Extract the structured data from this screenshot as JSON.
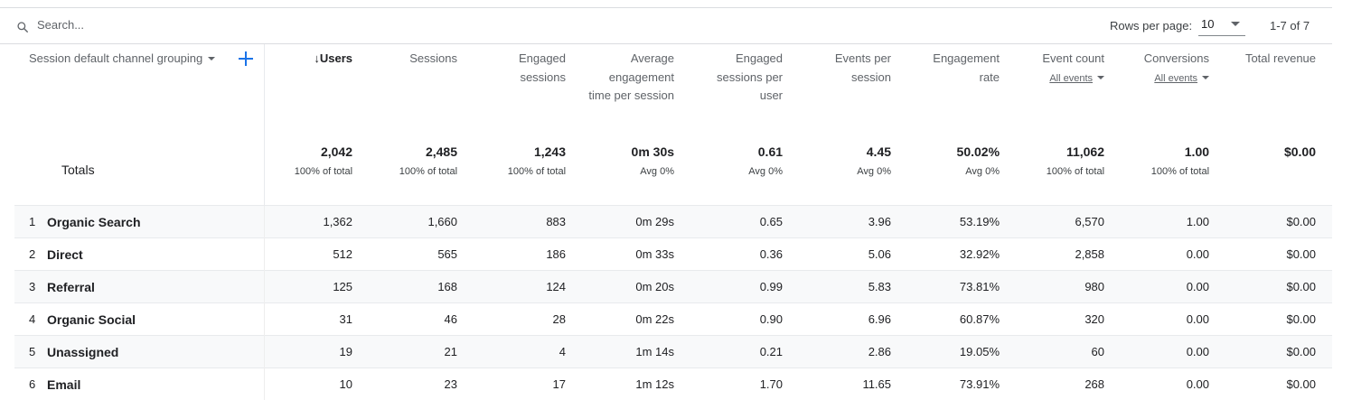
{
  "search": {
    "placeholder": "Search..."
  },
  "pagination": {
    "rows_label": "Rows per page:",
    "rows_value": "10",
    "range": "1-7 of 7"
  },
  "columns": {
    "dimension": "Session default channel grouping",
    "users": "↓Users",
    "sessions": "Sessions",
    "engaged_sessions": "Engaged sessions",
    "avg_engagement": "Average engagement time per session",
    "engaged_per_user": "Engaged sessions per user",
    "events_per_session": "Events per session",
    "engagement_rate": "Engagement rate",
    "event_count": "Event count",
    "event_count_sub": "All events",
    "conversions": "Conversions",
    "conversions_sub": "All events",
    "total_revenue": "Total revenue"
  },
  "totals": {
    "label": "Totals",
    "values": [
      "2,042",
      "2,485",
      "1,243",
      "0m 30s",
      "0.61",
      "4.45",
      "50.02%",
      "11,062",
      "1.00",
      "$0.00"
    ],
    "subs": [
      "100% of total",
      "100% of total",
      "100% of total",
      "Avg 0%",
      "Avg 0%",
      "Avg 0%",
      "Avg 0%",
      "100% of total",
      "100% of total",
      ""
    ]
  },
  "rows": [
    {
      "num": "1",
      "name": "Organic Search",
      "values": [
        "1,362",
        "1,660",
        "883",
        "0m 29s",
        "0.65",
        "3.96",
        "53.19%",
        "6,570",
        "1.00",
        "$0.00"
      ]
    },
    {
      "num": "2",
      "name": "Direct",
      "values": [
        "512",
        "565",
        "186",
        "0m 33s",
        "0.36",
        "5.06",
        "32.92%",
        "2,858",
        "0.00",
        "$0.00"
      ]
    },
    {
      "num": "3",
      "name": "Referral",
      "values": [
        "125",
        "168",
        "124",
        "0m 20s",
        "0.99",
        "5.83",
        "73.81%",
        "980",
        "0.00",
        "$0.00"
      ]
    },
    {
      "num": "4",
      "name": "Organic Social",
      "values": [
        "31",
        "46",
        "28",
        "0m 22s",
        "0.90",
        "6.96",
        "60.87%",
        "320",
        "0.00",
        "$0.00"
      ]
    },
    {
      "num": "5",
      "name": "Unassigned",
      "values": [
        "19",
        "21",
        "4",
        "1m 14s",
        "0.21",
        "2.86",
        "19.05%",
        "60",
        "0.00",
        "$0.00"
      ]
    },
    {
      "num": "6",
      "name": "Email",
      "values": [
        "10",
        "23",
        "17",
        "1m 12s",
        "1.70",
        "11.65",
        "73.91%",
        "268",
        "0.00",
        "$0.00"
      ]
    }
  ],
  "icons": {
    "search": "search-icon",
    "add_dimension": "plus-icon",
    "sort": "sort-descending-arrow"
  },
  "colors": {
    "accent": "#1a73e8",
    "row_alt": "#f8f9fa",
    "border": "#dadce0"
  }
}
